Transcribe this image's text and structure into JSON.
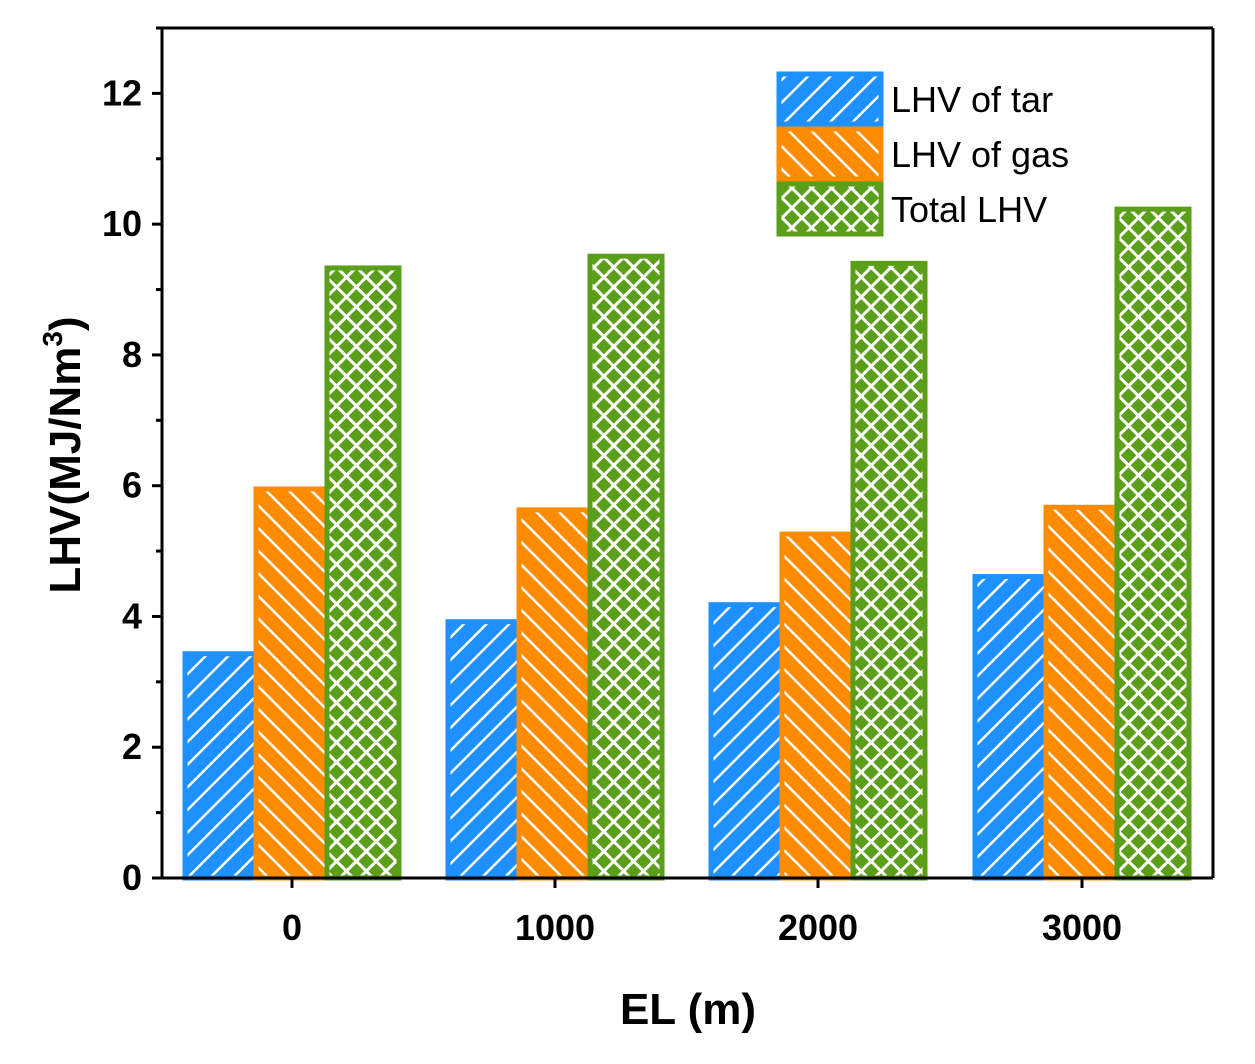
{
  "chart_data": {
    "type": "bar",
    "categories": [
      "0",
      "1000",
      "2000",
      "3000"
    ],
    "series": [
      {
        "name": "LHV of tar",
        "values": [
          3.43,
          3.92,
          4.18,
          4.61
        ],
        "color": "#1e90ff",
        "pattern": "hatch-forward"
      },
      {
        "name": "LHV of gas",
        "values": [
          5.95,
          5.63,
          5.26,
          5.67
        ],
        "color": "#ff8c00",
        "pattern": "hatch-backward"
      },
      {
        "name": "Total LHV",
        "values": [
          9.33,
          9.51,
          9.4,
          10.23
        ],
        "color": "#5a9e1a",
        "pattern": "crosshatch"
      }
    ],
    "xlabel": "EL (m)",
    "ylabel": "LHV(MJ/Nm",
    "ylabel_superscript": "3",
    "ylabel_suffix": ")",
    "ylim": [
      0,
      13
    ],
    "yticks": [
      "0",
      "2",
      "4",
      "6",
      "8",
      "10",
      "12"
    ],
    "grid": false,
    "legend_position": "top-right"
  }
}
